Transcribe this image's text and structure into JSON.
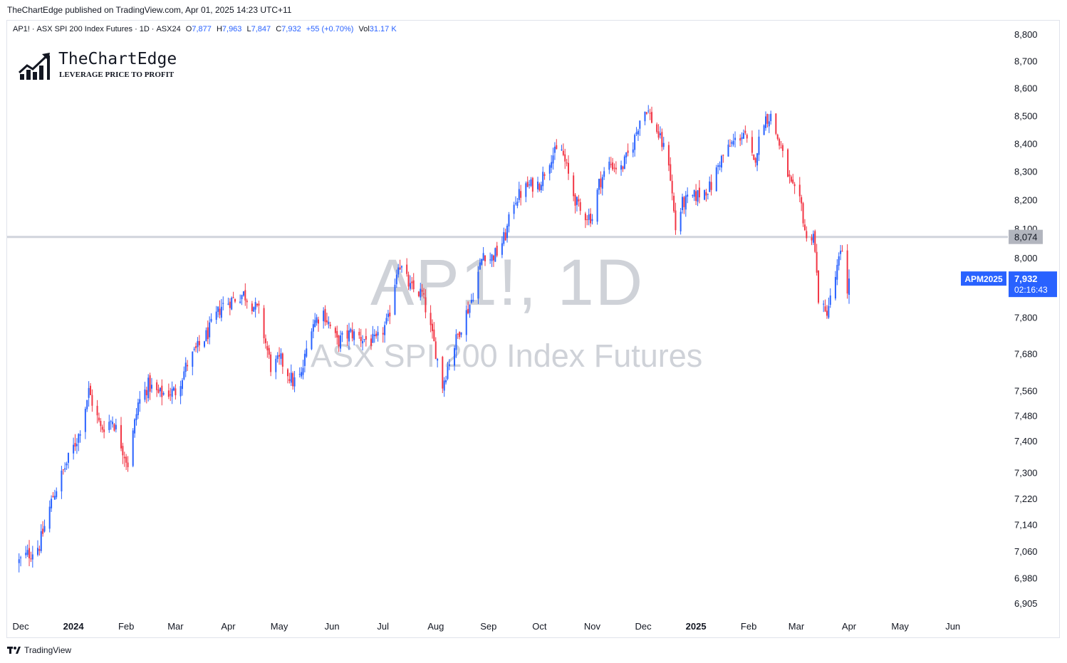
{
  "header": {
    "publish_line": "TheChartEdge published on TradingView.com, Apr 01, 2025 14:23 UTC+11"
  },
  "legend": {
    "symbol": "AP1!",
    "name": "ASX SPI 200 Index Futures",
    "interval": "1D",
    "exchange": "ASX24",
    "open_label": "O",
    "open": "7,877",
    "high_label": "H",
    "high": "7,963",
    "low_label": "L",
    "low": "7,847",
    "close_label": "C",
    "close": "7,932",
    "change": "+55 (+0.70%)",
    "vol_label": "Vol",
    "vol": "31.17 K"
  },
  "logo": {
    "name": "TheChartEdge",
    "tagline": "LEVERAGE PRICE TO PROFIT",
    "icon": "rising-chart-logo-icon"
  },
  "watermark": {
    "title": "AP1!, 1D",
    "subtitle": "ASX SPI 200 Index Futures"
  },
  "footer": {
    "brand": "TradingView",
    "icon": "tradingview-logo-icon"
  },
  "colors": {
    "up": "#2962ff",
    "down": "#f23645",
    "level_line": "#d1d4dc",
    "price_label_bg": "#2962ff",
    "level_label_bg": "#b2b5be"
  },
  "chart_data": {
    "type": "candlestick",
    "y_scale": "log",
    "ylim": [
      6860,
      8840
    ],
    "x_tick_labels": [
      "Dec",
      "2024",
      "Feb",
      "Mar",
      "Apr",
      "May",
      "Jun",
      "Jul",
      "Aug",
      "Sep",
      "Oct",
      "Nov",
      "Dec",
      "2025",
      "Feb",
      "Mar",
      "Apr",
      "May",
      "Jun"
    ],
    "x_tick_bold": [
      false,
      true,
      false,
      false,
      false,
      false,
      false,
      false,
      false,
      false,
      false,
      false,
      false,
      true,
      false,
      false,
      false,
      false,
      false
    ],
    "y_tick_labels": [
      "8,800",
      "8,700",
      "8,600",
      "8,500",
      "8,400",
      "8,300",
      "8,200",
      "8,100",
      "8,000",
      "7,800",
      "7,680",
      "7,560",
      "7,480",
      "7,400",
      "7,300",
      "7,220",
      "7,140",
      "7,060",
      "6,980",
      "6,905"
    ],
    "y_tick_values": [
      8800,
      8700,
      8600,
      8500,
      8400,
      8300,
      8200,
      8100,
      8000,
      7800,
      7680,
      7560,
      7480,
      7400,
      7300,
      7220,
      7140,
      7060,
      6980,
      6905
    ],
    "horizontal_level": {
      "value": 8074,
      "label": "8,074"
    },
    "last_price": {
      "value": 7932,
      "label": "7,932",
      "countdown": "02:16:43",
      "contract": "APM2025"
    },
    "path_dates": [
      "2023-11-30",
      "2023-12-12",
      "2023-12-20",
      "2024-01-04",
      "2024-01-10",
      "2024-01-17",
      "2024-01-24",
      "2024-02-02",
      "2024-02-08",
      "2024-02-14",
      "2024-02-20",
      "2024-03-01",
      "2024-03-08",
      "2024-03-14",
      "2024-03-20",
      "2024-03-28",
      "2024-04-03",
      "2024-04-10",
      "2024-04-19",
      "2024-04-26",
      "2024-05-02",
      "2024-05-09",
      "2024-05-14",
      "2024-05-20",
      "2024-05-27",
      "2024-06-04",
      "2024-06-12",
      "2024-06-20",
      "2024-06-27",
      "2024-07-04",
      "2024-07-10",
      "2024-07-17",
      "2024-07-24",
      "2024-08-01",
      "2024-08-05",
      "2024-08-09",
      "2024-08-15",
      "2024-08-22",
      "2024-08-29",
      "2024-09-02",
      "2024-09-06",
      "2024-09-11",
      "2024-09-16",
      "2024-09-24",
      "2024-10-01",
      "2024-10-08",
      "2024-10-14",
      "2024-10-21",
      "2024-10-25",
      "2024-11-01",
      "2024-11-05",
      "2024-11-11",
      "2024-11-18",
      "2024-11-25",
      "2024-11-29",
      "2024-12-03",
      "2024-12-10",
      "2024-12-16",
      "2024-12-20",
      "2024-12-24",
      "2025-01-02",
      "2025-01-10",
      "2025-01-15",
      "2025-01-22",
      "2025-01-29",
      "2025-02-04",
      "2025-02-10",
      "2025-02-14",
      "2025-02-20",
      "2025-02-26",
      "2025-03-04",
      "2025-03-07",
      "2025-03-11",
      "2025-03-14",
      "2025-03-18",
      "2025-03-21",
      "2025-03-26",
      "2025-03-28",
      "2025-03-31",
      "2025-04-01"
    ],
    "path_closes": [
      7030,
      7080,
      7230,
      7420,
      7560,
      7440,
      7470,
      7330,
      7520,
      7580,
      7550,
      7560,
      7650,
      7700,
      7750,
      7840,
      7860,
      7880,
      7820,
      7640,
      7660,
      7590,
      7610,
      7780,
      7820,
      7720,
      7750,
      7730,
      7720,
      7790,
      7990,
      7900,
      7880,
      7690,
      7580,
      7660,
      7760,
      7860,
      8020,
      8000,
      8020,
      8080,
      8200,
      8250,
      8260,
      8360,
      8380,
      8220,
      8160,
      8140,
      8260,
      8330,
      8310,
      8400,
      8490,
      8530,
      8430,
      8340,
      8100,
      8190,
      8220,
      8250,
      8340,
      8400,
      8440,
      8330,
      8490,
      8500,
      8380,
      8250,
      8180,
      8060,
      8090,
      7870,
      7810,
      7860,
      7990,
      8030,
      7900,
      7932
    ],
    "last_candle": {
      "date": "2025-04-01",
      "open": 7877,
      "high": 7963,
      "low": 7847,
      "close": 7932
    }
  }
}
